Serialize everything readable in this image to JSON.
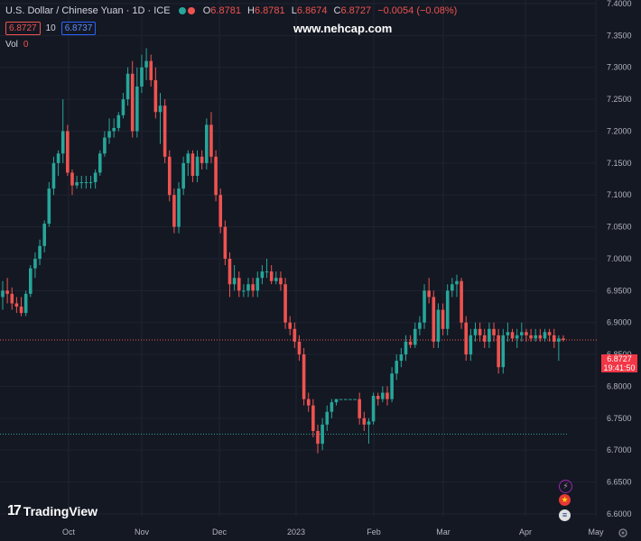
{
  "header": {
    "symbol": "U.S. Dollar / Chinese Yuan · 1D · ICE",
    "open_label": "O",
    "open": "6.8781",
    "high_label": "H",
    "high": "6.8781",
    "low_label": "L",
    "low": "6.8674",
    "close_label": "C",
    "close": "6.8727",
    "change": "−0.0054 (−0.08%)",
    "sell_price": "6.8727",
    "quantity": "10",
    "buy_price": "6.8737",
    "vol_label": "Vol",
    "vol_value": "0"
  },
  "watermark": "www.nehcap.com",
  "brand": "TradingView",
  "brand_logo": "17",
  "price_label": {
    "value": "6.8727",
    "countdown": "19:41:50"
  },
  "colors": {
    "up": "#26a69a",
    "down": "#ef5350",
    "background": "#141823"
  },
  "chart_data": {
    "type": "candlestick",
    "y_ticks": [
      "7.4000",
      "7.3500",
      "7.3000",
      "7.2500",
      "7.2000",
      "7.1500",
      "7.1000",
      "7.0500",
      "7.0000",
      "6.9500",
      "6.9000",
      "6.8500",
      "6.8000",
      "6.7500",
      "6.7000",
      "6.6500",
      "6.6000"
    ],
    "x_ticks": [
      "Oct",
      "Nov",
      "Dec",
      "2023",
      "Feb",
      "Mar",
      "Apr",
      "May"
    ],
    "ylim": [
      6.59,
      7.4
    ],
    "reference_lines": [
      6.8727,
      6.725
    ],
    "ohlc": [
      [
        6.94,
        6.965,
        6.92,
        6.95
      ],
      [
        6.95,
        6.97,
        6.93,
        6.945
      ],
      [
        6.945,
        6.955,
        6.92,
        6.93
      ],
      [
        6.93,
        6.94,
        6.915,
        6.925
      ],
      [
        6.925,
        6.94,
        6.91,
        6.915
      ],
      [
        6.915,
        6.95,
        6.91,
        6.945
      ],
      [
        6.945,
        6.99,
        6.94,
        6.985
      ],
      [
        6.985,
        7.01,
        6.97,
        7.0
      ],
      [
        7.0,
        7.03,
        6.99,
        7.02
      ],
      [
        7.02,
        7.06,
        7.01,
        7.055
      ],
      [
        7.055,
        7.12,
        7.05,
        7.11
      ],
      [
        7.11,
        7.16,
        7.1,
        7.15
      ],
      [
        7.15,
        7.17,
        7.13,
        7.165
      ],
      [
        7.165,
        7.25,
        7.15,
        7.2
      ],
      [
        7.2,
        7.21,
        7.13,
        7.135
      ],
      [
        7.135,
        7.14,
        7.1,
        7.115
      ],
      [
        7.115,
        7.13,
        7.11,
        7.12
      ],
      [
        7.12,
        7.13,
        7.11,
        7.12
      ],
      [
        7.12,
        7.13,
        7.11,
        7.12
      ],
      [
        7.12,
        7.13,
        7.11,
        7.12
      ],
      [
        7.12,
        7.14,
        7.11,
        7.135
      ],
      [
        7.135,
        7.17,
        7.13,
        7.165
      ],
      [
        7.165,
        7.2,
        7.16,
        7.19
      ],
      [
        7.19,
        7.22,
        7.18,
        7.2
      ],
      [
        7.2,
        7.22,
        7.19,
        7.205
      ],
      [
        7.205,
        7.23,
        7.2,
        7.225
      ],
      [
        7.225,
        7.26,
        7.22,
        7.25
      ],
      [
        7.25,
        7.3,
        7.24,
        7.29
      ],
      [
        7.29,
        7.31,
        7.19,
        7.2
      ],
      [
        7.2,
        7.3,
        7.19,
        7.27
      ],
      [
        7.27,
        7.32,
        7.26,
        7.3
      ],
      [
        7.3,
        7.33,
        7.28,
        7.31
      ],
      [
        7.31,
        7.32,
        7.27,
        7.28
      ],
      [
        7.28,
        7.3,
        7.22,
        7.23
      ],
      [
        7.23,
        7.26,
        7.18,
        7.24
      ],
      [
        7.24,
        7.25,
        7.15,
        7.16
      ],
      [
        7.16,
        7.17,
        7.09,
        7.1
      ],
      [
        7.1,
        7.11,
        7.04,
        7.05
      ],
      [
        7.05,
        7.12,
        7.04,
        7.11
      ],
      [
        7.11,
        7.16,
        7.1,
        7.15
      ],
      [
        7.15,
        7.17,
        7.13,
        7.165
      ],
      [
        7.165,
        7.17,
        7.12,
        7.13
      ],
      [
        7.13,
        7.17,
        7.12,
        7.16
      ],
      [
        7.16,
        7.17,
        7.14,
        7.15
      ],
      [
        7.15,
        7.22,
        7.14,
        7.21
      ],
      [
        7.21,
        7.23,
        7.15,
        7.16
      ],
      [
        7.16,
        7.17,
        7.09,
        7.1
      ],
      [
        7.1,
        7.11,
        7.04,
        7.05
      ],
      [
        7.05,
        7.06,
        6.99,
        7.0
      ],
      [
        7.0,
        7.01,
        6.94,
        6.96
      ],
      [
        6.96,
        6.99,
        6.95,
        6.97
      ],
      [
        6.97,
        6.98,
        6.94,
        6.95
      ],
      [
        6.95,
        6.96,
        6.94,
        6.95
      ],
      [
        6.95,
        6.97,
        6.94,
        6.96
      ],
      [
        6.96,
        6.97,
        6.94,
        6.95
      ],
      [
        6.95,
        6.98,
        6.94,
        6.97
      ],
      [
        6.97,
        6.99,
        6.96,
        6.98
      ],
      [
        6.98,
        7.0,
        6.97,
        6.98
      ],
      [
        6.98,
        6.99,
        6.96,
        6.965
      ],
      [
        6.965,
        6.98,
        6.96,
        6.97
      ],
      [
        6.97,
        6.98,
        6.95,
        6.96
      ],
      [
        6.96,
        6.97,
        6.89,
        6.9
      ],
      [
        6.9,
        6.91,
        6.88,
        6.89
      ],
      [
        6.89,
        6.9,
        6.86,
        6.87
      ],
      [
        6.87,
        6.88,
        6.84,
        6.85
      ],
      [
        6.85,
        6.86,
        6.77,
        6.78
      ],
      [
        6.78,
        6.79,
        6.76,
        6.77
      ],
      [
        6.77,
        6.78,
        6.72,
        6.73
      ],
      [
        6.73,
        6.74,
        6.695,
        6.71
      ],
      [
        6.71,
        6.75,
        6.7,
        6.74
      ],
      [
        6.74,
        6.77,
        6.73,
        6.76
      ],
      [
        6.76,
        6.78,
        6.75,
        6.775
      ],
      [
        6.775,
        6.78,
        6.77,
        6.78
      ],
      [
        6.78,
        6.78,
        6.78,
        6.78
      ],
      [
        6.78,
        6.78,
        6.78,
        6.78
      ],
      [
        6.78,
        6.78,
        6.78,
        6.78
      ],
      [
        6.78,
        6.78,
        6.78,
        6.78
      ],
      [
        6.78,
        6.79,
        6.74,
        6.75
      ],
      [
        6.75,
        6.76,
        6.73,
        6.74
      ],
      [
        6.74,
        6.75,
        6.71,
        6.745
      ],
      [
        6.745,
        6.79,
        6.74,
        6.785
      ],
      [
        6.785,
        6.79,
        6.77,
        6.78
      ],
      [
        6.78,
        6.8,
        6.775,
        6.79
      ],
      [
        6.79,
        6.8,
        6.77,
        6.78
      ],
      [
        6.78,
        6.83,
        6.775,
        6.82
      ],
      [
        6.82,
        6.85,
        6.81,
        6.84
      ],
      [
        6.84,
        6.86,
        6.83,
        6.85
      ],
      [
        6.85,
        6.88,
        6.84,
        6.87
      ],
      [
        6.87,
        6.88,
        6.86,
        6.865
      ],
      [
        6.865,
        6.9,
        6.86,
        6.89
      ],
      [
        6.89,
        6.91,
        6.88,
        6.9
      ],
      [
        6.9,
        6.96,
        6.89,
        6.95
      ],
      [
        6.95,
        6.97,
        6.93,
        6.94
      ],
      [
        6.94,
        6.95,
        6.86,
        6.87
      ],
      [
        6.87,
        6.93,
        6.86,
        6.92
      ],
      [
        6.92,
        6.93,
        6.88,
        6.89
      ],
      [
        6.89,
        6.96,
        6.88,
        6.95
      ],
      [
        6.95,
        6.97,
        6.94,
        6.96
      ],
      [
        6.96,
        6.975,
        6.94,
        6.965
      ],
      [
        6.965,
        6.97,
        6.89,
        6.9
      ],
      [
        6.9,
        6.91,
        6.84,
        6.85
      ],
      [
        6.85,
        6.89,
        6.84,
        6.88
      ],
      [
        6.88,
        6.9,
        6.87,
        6.89
      ],
      [
        6.89,
        6.9,
        6.87,
        6.88
      ],
      [
        6.88,
        6.89,
        6.86,
        6.87
      ],
      [
        6.87,
        6.9,
        6.86,
        6.89
      ],
      [
        6.89,
        6.9,
        6.87,
        6.88
      ],
      [
        6.88,
        6.89,
        6.82,
        6.83
      ],
      [
        6.83,
        6.89,
        6.82,
        6.88
      ],
      [
        6.88,
        6.9,
        6.87,
        6.885
      ],
      [
        6.885,
        6.89,
        6.87,
        6.875
      ],
      [
        6.875,
        6.89,
        6.86,
        6.88
      ],
      [
        6.88,
        6.9,
        6.87,
        6.885
      ],
      [
        6.885,
        6.89,
        6.87,
        6.88
      ],
      [
        6.88,
        6.89,
        6.87,
        6.875
      ],
      [
        6.875,
        6.89,
        6.87,
        6.88
      ],
      [
        6.88,
        6.89,
        6.87,
        6.875
      ],
      [
        6.875,
        6.89,
        6.87,
        6.885
      ],
      [
        6.885,
        6.89,
        6.87,
        6.88
      ],
      [
        6.88,
        6.89,
        6.86,
        6.87
      ],
      [
        6.87,
        6.88,
        6.84,
        6.875
      ],
      [
        6.875,
        6.88,
        6.87,
        6.8727
      ]
    ]
  }
}
